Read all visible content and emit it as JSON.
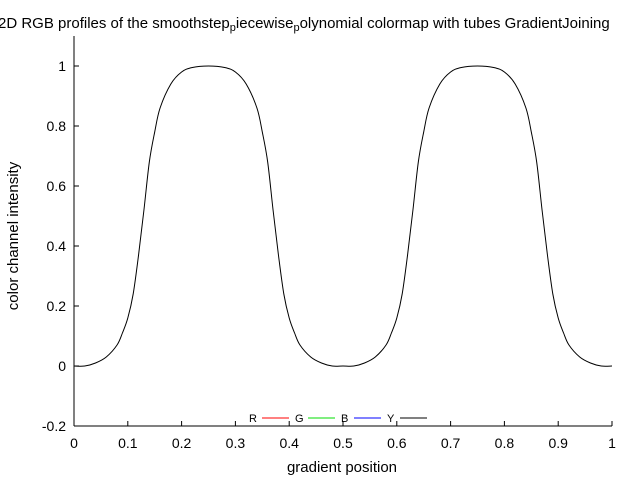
{
  "chart_data": {
    "type": "line",
    "title_parts": [
      {
        "text": "2D RGB profiles of the smoothstep",
        "sub": false
      },
      {
        "text": "p",
        "sub": true
      },
      {
        "text": "iecewise",
        "sub": false
      },
      {
        "text": "p",
        "sub": true
      },
      {
        "text": "olynomial colormap with tubes GradientJoining",
        "sub": false
      }
    ],
    "xlabel": "gradient position",
    "ylabel": "color channel intensity",
    "xlim": [
      0,
      1
    ],
    "ylim": [
      -0.2,
      1.1
    ],
    "xticks": [
      0,
      0.1,
      0.2,
      0.3,
      0.4,
      0.5,
      0.6,
      0.7,
      0.8,
      0.9,
      1
    ],
    "yticks": [
      -0.2,
      0,
      0.2,
      0.4,
      0.6,
      0.8,
      1
    ],
    "legend_position": "bottom-center",
    "series": [
      {
        "name": "R",
        "color": "#ff0000",
        "x": [],
        "values": []
      },
      {
        "name": "G",
        "color": "#00dd00",
        "x": [],
        "values": []
      },
      {
        "name": "B",
        "color": "#0000ff",
        "x": [],
        "values": []
      },
      {
        "name": "Y",
        "color": "#000000",
        "x": [
          0,
          0.02,
          0.04,
          0.06,
          0.08,
          0.09,
          0.1,
          0.11,
          0.12,
          0.13,
          0.14,
          0.15,
          0.16,
          0.18,
          0.2,
          0.22,
          0.25,
          0.28,
          0.3,
          0.32,
          0.34,
          0.35,
          0.36,
          0.37,
          0.38,
          0.39,
          0.4,
          0.41,
          0.42,
          0.44,
          0.46,
          0.48,
          0.5,
          0.52,
          0.54,
          0.56,
          0.58,
          0.59,
          0.6,
          0.61,
          0.62,
          0.63,
          0.64,
          0.65,
          0.66,
          0.68,
          0.7,
          0.72,
          0.75,
          0.78,
          0.8,
          0.82,
          0.84,
          0.85,
          0.86,
          0.87,
          0.88,
          0.89,
          0.9,
          0.91,
          0.92,
          0.94,
          0.96,
          0.98,
          1
        ],
        "values": [
          0,
          0.0,
          0.01,
          0.03,
          0.07,
          0.11,
          0.16,
          0.24,
          0.37,
          0.52,
          0.68,
          0.78,
          0.86,
          0.94,
          0.98,
          0.995,
          1.0,
          0.995,
          0.98,
          0.94,
          0.86,
          0.78,
          0.68,
          0.52,
          0.37,
          0.24,
          0.16,
          0.11,
          0.07,
          0.03,
          0.01,
          0.0,
          0.0,
          0.0,
          0.01,
          0.03,
          0.07,
          0.11,
          0.16,
          0.24,
          0.37,
          0.52,
          0.68,
          0.78,
          0.86,
          0.94,
          0.98,
          0.995,
          1.0,
          0.995,
          0.98,
          0.94,
          0.86,
          0.78,
          0.68,
          0.52,
          0.37,
          0.24,
          0.16,
          0.11,
          0.07,
          0.03,
          0.01,
          0.0,
          0
        ]
      }
    ]
  }
}
